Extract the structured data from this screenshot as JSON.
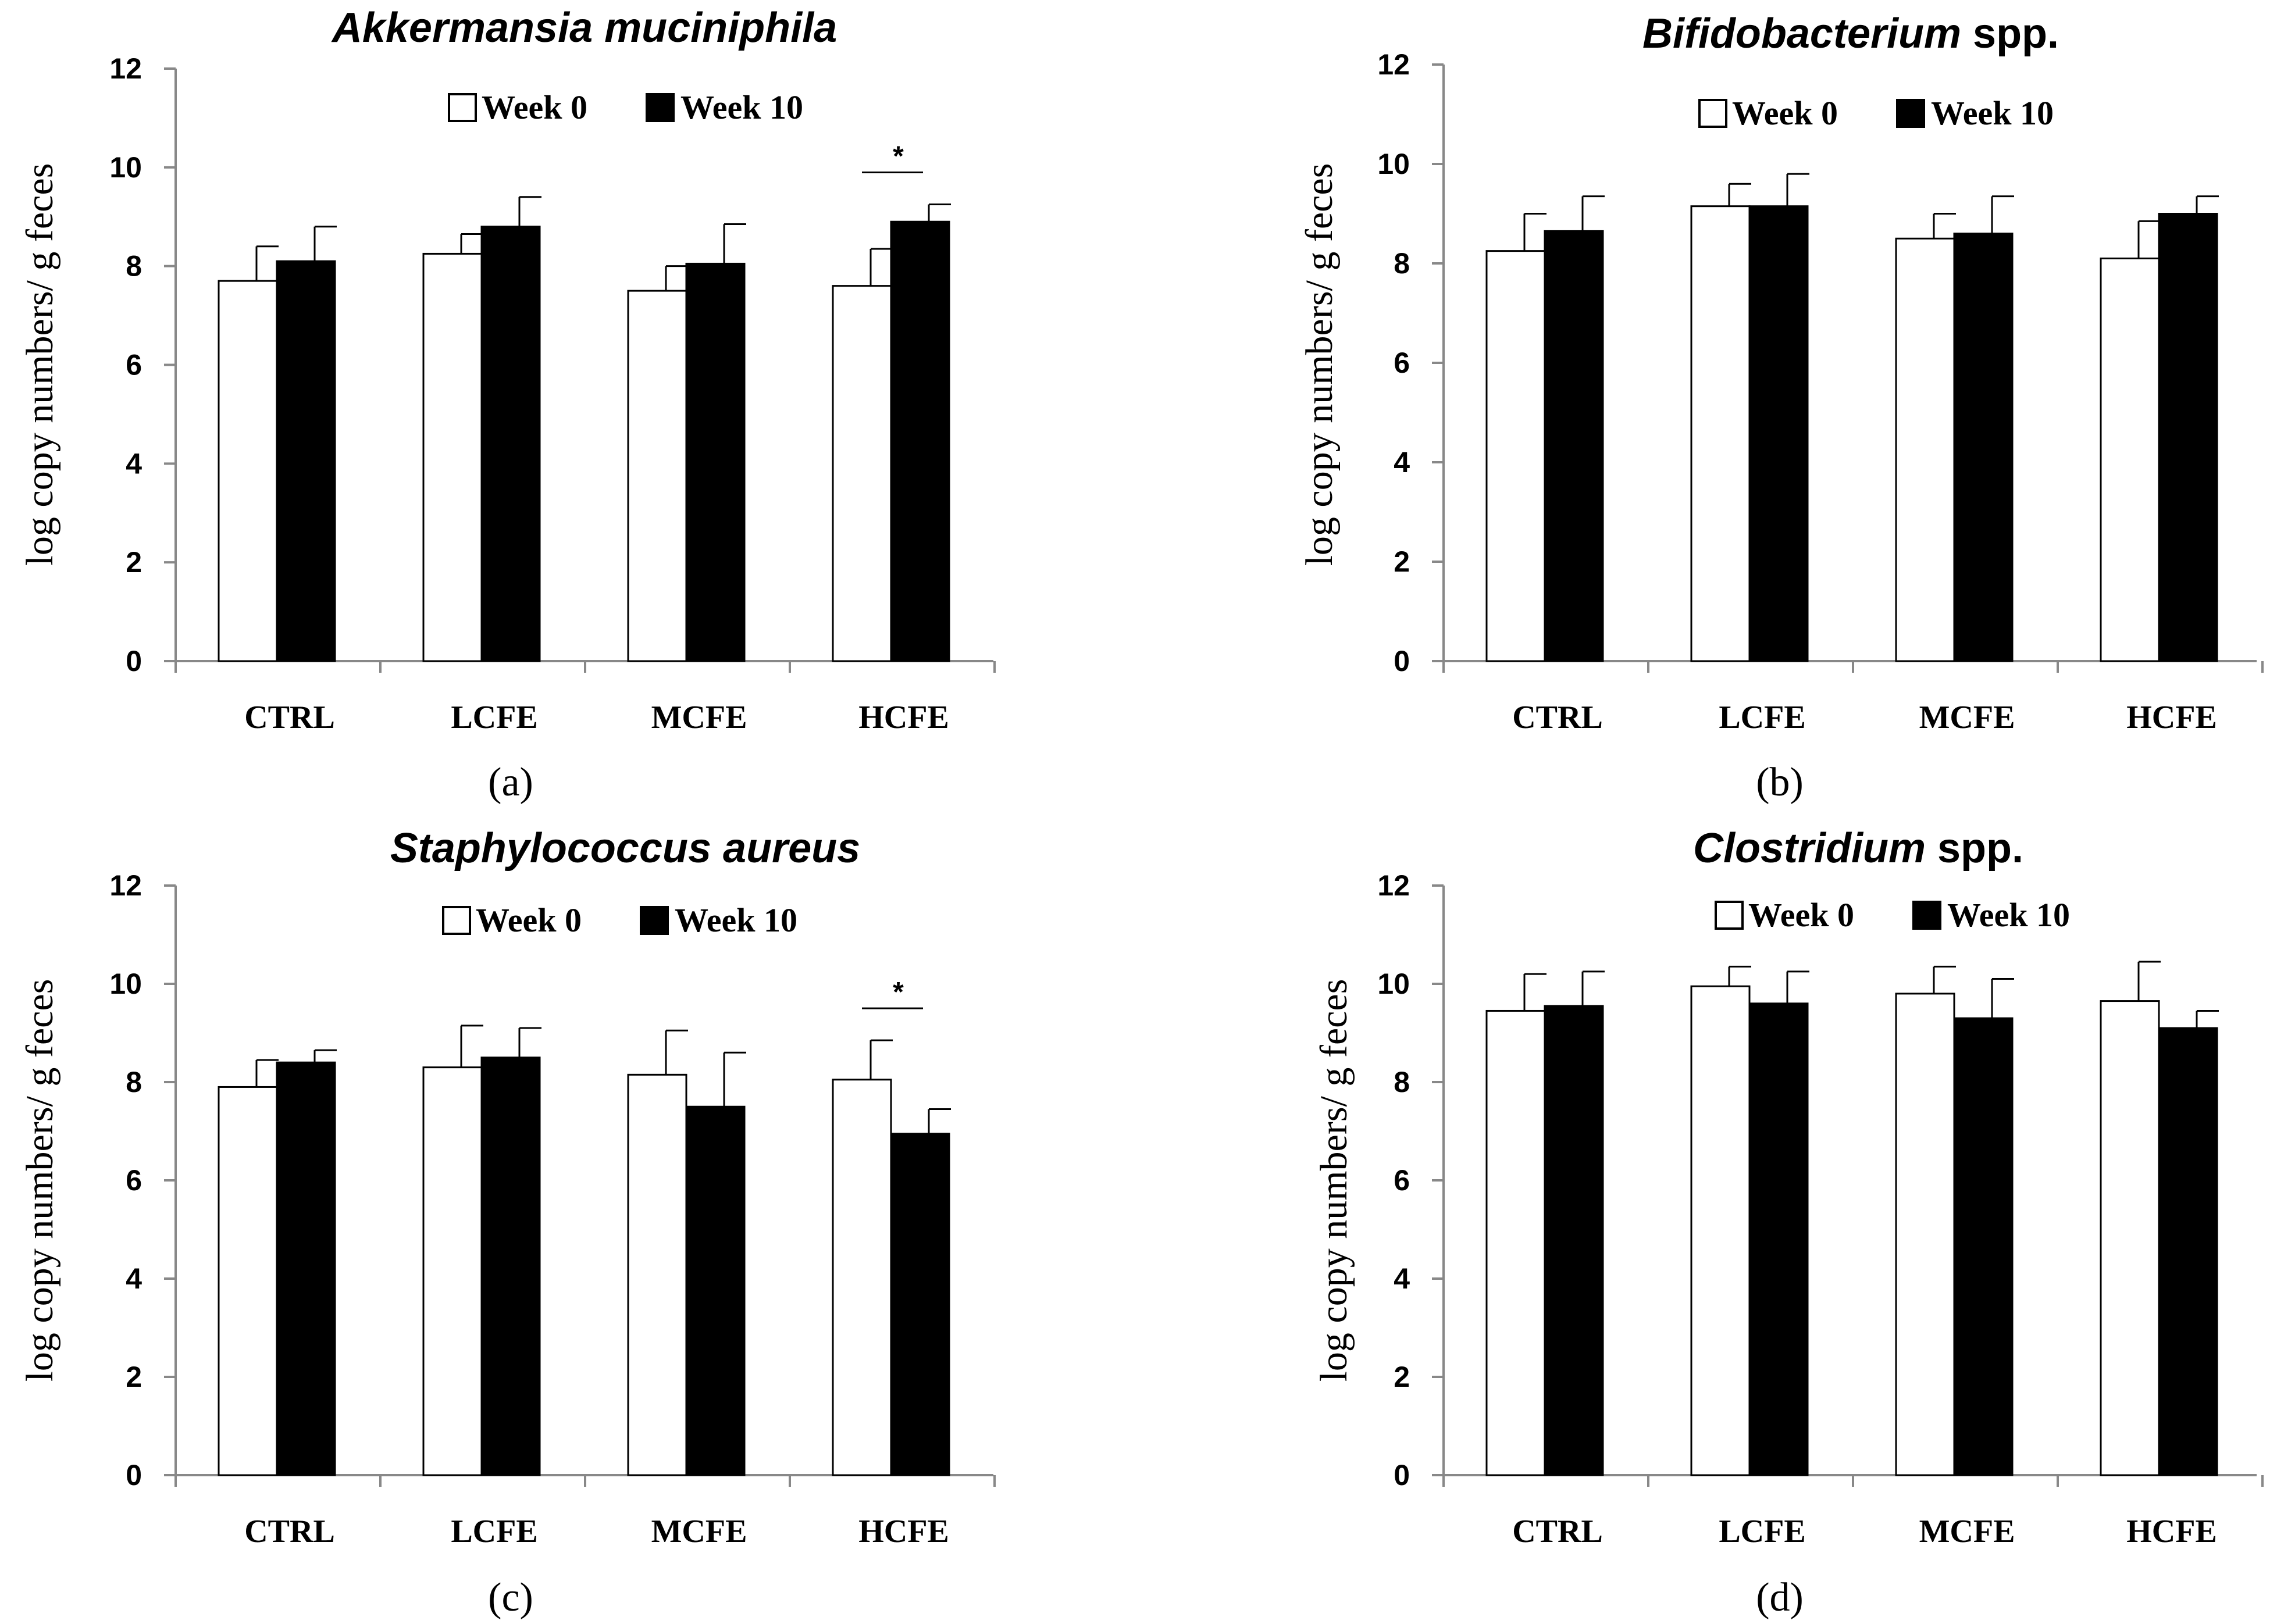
{
  "chart_data": [
    {
      "type": "bar",
      "panel_label": "(a)",
      "title": "Akkermansia muciniphila",
      "title_italic": "Akkermansia muciniphila",
      "title_suffix": "",
      "ylabel": "log copy numbers/ g feces",
      "xlabel": "",
      "ylim": [
        0,
        12
      ],
      "yticks": [
        "0",
        "2",
        "4",
        "6",
        "8",
        "10",
        "12"
      ],
      "categories": [
        "CTRL",
        "LCFE",
        "MCFE",
        "HCFE"
      ],
      "legend": [
        "Week 0",
        "Week 10"
      ],
      "series": [
        {
          "name": "Week 0",
          "values": [
            7.7,
            8.25,
            7.5,
            7.6
          ],
          "errors": [
            0.7,
            0.4,
            0.5,
            0.75
          ]
        },
        {
          "name": "Week 10",
          "values": [
            8.1,
            8.8,
            8.05,
            8.9
          ],
          "errors": [
            0.7,
            0.6,
            0.8,
            0.35
          ]
        }
      ],
      "significance": {
        "category": "HCFE",
        "label": "*"
      }
    },
    {
      "type": "bar",
      "panel_label": "(b)",
      "title": "Bifidobacterium spp.",
      "title_italic": "Bifidobacterium",
      "title_suffix": " spp.",
      "ylabel": "log copy numbers/ g feces",
      "xlabel": "",
      "ylim": [
        0,
        12
      ],
      "yticks": [
        "0",
        "2",
        "4",
        "6",
        "8",
        "10",
        "12"
      ],
      "categories": [
        "CTRL",
        "LCFE",
        "MCFE",
        "HCFE"
      ],
      "legend": [
        "Week 0",
        "Week 10"
      ],
      "series": [
        {
          "name": "Week 0",
          "values": [
            8.25,
            9.15,
            8.5,
            8.1
          ],
          "errors": [
            0.75,
            0.45,
            0.5,
            0.75
          ]
        },
        {
          "name": "Week 10",
          "values": [
            8.65,
            9.15,
            8.6,
            9.0
          ],
          "errors": [
            0.7,
            0.65,
            0.75,
            0.35
          ]
        }
      ],
      "significance": null
    },
    {
      "type": "bar",
      "panel_label": "(c)",
      "title": "Staphylococcus aureus",
      "title_italic": "Staphylococcus aureus",
      "title_suffix": "",
      "ylabel": "log copy numbers/ g feces",
      "xlabel": "",
      "ylim": [
        0,
        12
      ],
      "yticks": [
        "0",
        "2",
        "4",
        "6",
        "8",
        "10",
        "12"
      ],
      "categories": [
        "CTRL",
        "LCFE",
        "MCFE",
        "HCFE"
      ],
      "legend": [
        "Week 0",
        "Week 10"
      ],
      "series": [
        {
          "name": "Week 0",
          "values": [
            7.9,
            8.3,
            8.15,
            8.05
          ],
          "errors": [
            0.55,
            0.85,
            0.9,
            0.8
          ]
        },
        {
          "name": "Week 10",
          "values": [
            8.4,
            8.5,
            7.5,
            6.95
          ],
          "errors": [
            0.25,
            0.6,
            1.1,
            0.5
          ]
        }
      ],
      "significance": {
        "category": "HCFE",
        "label": "*"
      }
    },
    {
      "type": "bar",
      "panel_label": "(d)",
      "title": "Clostridium spp.",
      "title_italic": "Clostridium",
      "title_suffix": " spp.",
      "ylabel": "log copy numbers/ g feces",
      "xlabel": "",
      "ylim": [
        0,
        12
      ],
      "yticks": [
        "0",
        "2",
        "4",
        "6",
        "8",
        "10",
        "12"
      ],
      "categories": [
        "CTRL",
        "LCFE",
        "MCFE",
        "HCFE"
      ],
      "legend": [
        "Week 0",
        "Week 10"
      ],
      "series": [
        {
          "name": "Week 0",
          "values": [
            9.45,
            9.95,
            9.8,
            9.65
          ],
          "errors": [
            0.75,
            0.4,
            0.55,
            0.8
          ]
        },
        {
          "name": "Week 10",
          "values": [
            9.55,
            9.6,
            9.3,
            9.1
          ],
          "errors": [
            0.7,
            0.65,
            0.8,
            0.35
          ]
        }
      ],
      "significance": null
    }
  ]
}
